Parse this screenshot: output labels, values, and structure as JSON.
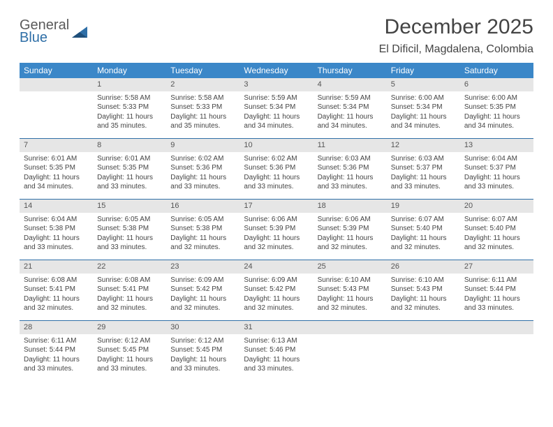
{
  "logo": {
    "word1": "General",
    "word2": "Blue"
  },
  "title": "December 2025",
  "location": "El Dificil, Magdalena, Colombia",
  "dayHeaders": [
    "Sunday",
    "Monday",
    "Tuesday",
    "Wednesday",
    "Thursday",
    "Friday",
    "Saturday"
  ],
  "colors": {
    "headerBar": "#3b87c8",
    "weekDivider": "#2f6fa7",
    "dayNumBg": "#e6e6e6",
    "text": "#444444",
    "logoBlue": "#2f6fa7"
  },
  "weeks": [
    [
      {
        "n": "",
        "sunrise": "",
        "sunset": "",
        "daylight": ""
      },
      {
        "n": "1",
        "sunrise": "Sunrise: 5:58 AM",
        "sunset": "Sunset: 5:33 PM",
        "daylight": "Daylight: 11 hours and 35 minutes."
      },
      {
        "n": "2",
        "sunrise": "Sunrise: 5:58 AM",
        "sunset": "Sunset: 5:33 PM",
        "daylight": "Daylight: 11 hours and 35 minutes."
      },
      {
        "n": "3",
        "sunrise": "Sunrise: 5:59 AM",
        "sunset": "Sunset: 5:34 PM",
        "daylight": "Daylight: 11 hours and 34 minutes."
      },
      {
        "n": "4",
        "sunrise": "Sunrise: 5:59 AM",
        "sunset": "Sunset: 5:34 PM",
        "daylight": "Daylight: 11 hours and 34 minutes."
      },
      {
        "n": "5",
        "sunrise": "Sunrise: 6:00 AM",
        "sunset": "Sunset: 5:34 PM",
        "daylight": "Daylight: 11 hours and 34 minutes."
      },
      {
        "n": "6",
        "sunrise": "Sunrise: 6:00 AM",
        "sunset": "Sunset: 5:35 PM",
        "daylight": "Daylight: 11 hours and 34 minutes."
      }
    ],
    [
      {
        "n": "7",
        "sunrise": "Sunrise: 6:01 AM",
        "sunset": "Sunset: 5:35 PM",
        "daylight": "Daylight: 11 hours and 34 minutes."
      },
      {
        "n": "8",
        "sunrise": "Sunrise: 6:01 AM",
        "sunset": "Sunset: 5:35 PM",
        "daylight": "Daylight: 11 hours and 33 minutes."
      },
      {
        "n": "9",
        "sunrise": "Sunrise: 6:02 AM",
        "sunset": "Sunset: 5:36 PM",
        "daylight": "Daylight: 11 hours and 33 minutes."
      },
      {
        "n": "10",
        "sunrise": "Sunrise: 6:02 AM",
        "sunset": "Sunset: 5:36 PM",
        "daylight": "Daylight: 11 hours and 33 minutes."
      },
      {
        "n": "11",
        "sunrise": "Sunrise: 6:03 AM",
        "sunset": "Sunset: 5:36 PM",
        "daylight": "Daylight: 11 hours and 33 minutes."
      },
      {
        "n": "12",
        "sunrise": "Sunrise: 6:03 AM",
        "sunset": "Sunset: 5:37 PM",
        "daylight": "Daylight: 11 hours and 33 minutes."
      },
      {
        "n": "13",
        "sunrise": "Sunrise: 6:04 AM",
        "sunset": "Sunset: 5:37 PM",
        "daylight": "Daylight: 11 hours and 33 minutes."
      }
    ],
    [
      {
        "n": "14",
        "sunrise": "Sunrise: 6:04 AM",
        "sunset": "Sunset: 5:38 PM",
        "daylight": "Daylight: 11 hours and 33 minutes."
      },
      {
        "n": "15",
        "sunrise": "Sunrise: 6:05 AM",
        "sunset": "Sunset: 5:38 PM",
        "daylight": "Daylight: 11 hours and 33 minutes."
      },
      {
        "n": "16",
        "sunrise": "Sunrise: 6:05 AM",
        "sunset": "Sunset: 5:38 PM",
        "daylight": "Daylight: 11 hours and 32 minutes."
      },
      {
        "n": "17",
        "sunrise": "Sunrise: 6:06 AM",
        "sunset": "Sunset: 5:39 PM",
        "daylight": "Daylight: 11 hours and 32 minutes."
      },
      {
        "n": "18",
        "sunrise": "Sunrise: 6:06 AM",
        "sunset": "Sunset: 5:39 PM",
        "daylight": "Daylight: 11 hours and 32 minutes."
      },
      {
        "n": "19",
        "sunrise": "Sunrise: 6:07 AM",
        "sunset": "Sunset: 5:40 PM",
        "daylight": "Daylight: 11 hours and 32 minutes."
      },
      {
        "n": "20",
        "sunrise": "Sunrise: 6:07 AM",
        "sunset": "Sunset: 5:40 PM",
        "daylight": "Daylight: 11 hours and 32 minutes."
      }
    ],
    [
      {
        "n": "21",
        "sunrise": "Sunrise: 6:08 AM",
        "sunset": "Sunset: 5:41 PM",
        "daylight": "Daylight: 11 hours and 32 minutes."
      },
      {
        "n": "22",
        "sunrise": "Sunrise: 6:08 AM",
        "sunset": "Sunset: 5:41 PM",
        "daylight": "Daylight: 11 hours and 32 minutes."
      },
      {
        "n": "23",
        "sunrise": "Sunrise: 6:09 AM",
        "sunset": "Sunset: 5:42 PM",
        "daylight": "Daylight: 11 hours and 32 minutes."
      },
      {
        "n": "24",
        "sunrise": "Sunrise: 6:09 AM",
        "sunset": "Sunset: 5:42 PM",
        "daylight": "Daylight: 11 hours and 32 minutes."
      },
      {
        "n": "25",
        "sunrise": "Sunrise: 6:10 AM",
        "sunset": "Sunset: 5:43 PM",
        "daylight": "Daylight: 11 hours and 32 minutes."
      },
      {
        "n": "26",
        "sunrise": "Sunrise: 6:10 AM",
        "sunset": "Sunset: 5:43 PM",
        "daylight": "Daylight: 11 hours and 32 minutes."
      },
      {
        "n": "27",
        "sunrise": "Sunrise: 6:11 AM",
        "sunset": "Sunset: 5:44 PM",
        "daylight": "Daylight: 11 hours and 33 minutes."
      }
    ],
    [
      {
        "n": "28",
        "sunrise": "Sunrise: 6:11 AM",
        "sunset": "Sunset: 5:44 PM",
        "daylight": "Daylight: 11 hours and 33 minutes."
      },
      {
        "n": "29",
        "sunrise": "Sunrise: 6:12 AM",
        "sunset": "Sunset: 5:45 PM",
        "daylight": "Daylight: 11 hours and 33 minutes."
      },
      {
        "n": "30",
        "sunrise": "Sunrise: 6:12 AM",
        "sunset": "Sunset: 5:45 PM",
        "daylight": "Daylight: 11 hours and 33 minutes."
      },
      {
        "n": "31",
        "sunrise": "Sunrise: 6:13 AM",
        "sunset": "Sunset: 5:46 PM",
        "daylight": "Daylight: 11 hours and 33 minutes."
      },
      {
        "n": "",
        "sunrise": "",
        "sunset": "",
        "daylight": ""
      },
      {
        "n": "",
        "sunrise": "",
        "sunset": "",
        "daylight": ""
      },
      {
        "n": "",
        "sunrise": "",
        "sunset": "",
        "daylight": ""
      }
    ]
  ]
}
